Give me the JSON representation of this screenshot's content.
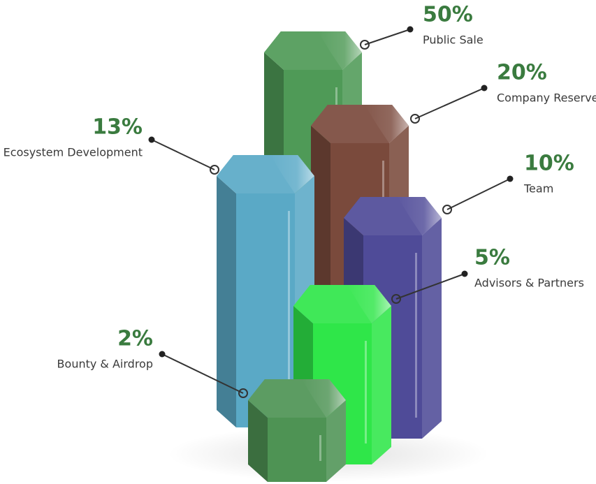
{
  "chart_data": {
    "type": "bar",
    "categories": [
      "Public Sale",
      "Company Reserve",
      "Ecosystem Development",
      "Team",
      "Advisors & Partners",
      "Bounty & Airdrop"
    ],
    "values": [
      50,
      20,
      13,
      10,
      5,
      2
    ],
    "value_labels": [
      "50%",
      "20%",
      "13%",
      "10%",
      "5%",
      "2%"
    ],
    "colors": [
      "#4f9a57",
      "#7a4a3c",
      "#5aa9c6",
      "#4f4b98",
      "#2fe649",
      "#4e9354"
    ]
  }
}
